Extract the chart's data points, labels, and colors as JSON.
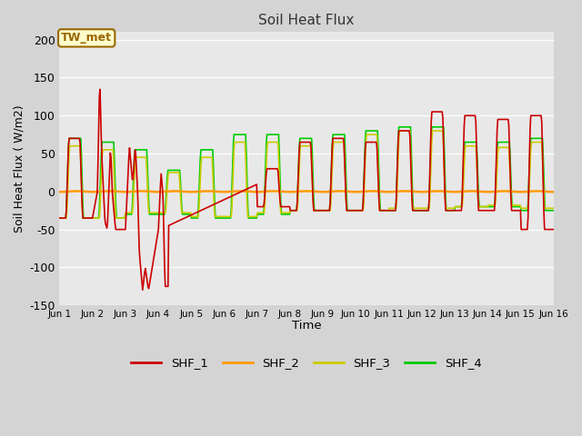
{
  "title": "Soil Heat Flux",
  "xlabel": "Time",
  "ylabel": "Soil Heat Flux ( W/m2)",
  "ylim": [
    -150,
    210
  ],
  "yticks": [
    -150,
    -100,
    -50,
    0,
    50,
    100,
    150,
    200
  ],
  "fig_bg_color": "#d4d4d4",
  "plot_bg_color": "#e8e8e8",
  "annotation_text": "TW_met",
  "annotation_box_color": "#ffffcc",
  "annotation_box_edge": "#996600",
  "series_colors": {
    "SHF_1": "#cc0000",
    "SHF_2": "#ff9900",
    "SHF_3": "#cccc00",
    "SHF_4": "#00cc00"
  },
  "tick_labels": [
    "Jun 1",
    "Jun 2",
    "Jun 3",
    "Jun 4",
    "Jun 5",
    "Jun 6",
    "Jun 7",
    "Jun 8",
    "Jun 9",
    "Jun 10",
    "Jun 11",
    "Jun 12",
    "Jun 13",
    "Jun 14",
    "Jun 15",
    "Jun 16"
  ],
  "grid_color": "#ffffff",
  "linewidth": 1.2
}
